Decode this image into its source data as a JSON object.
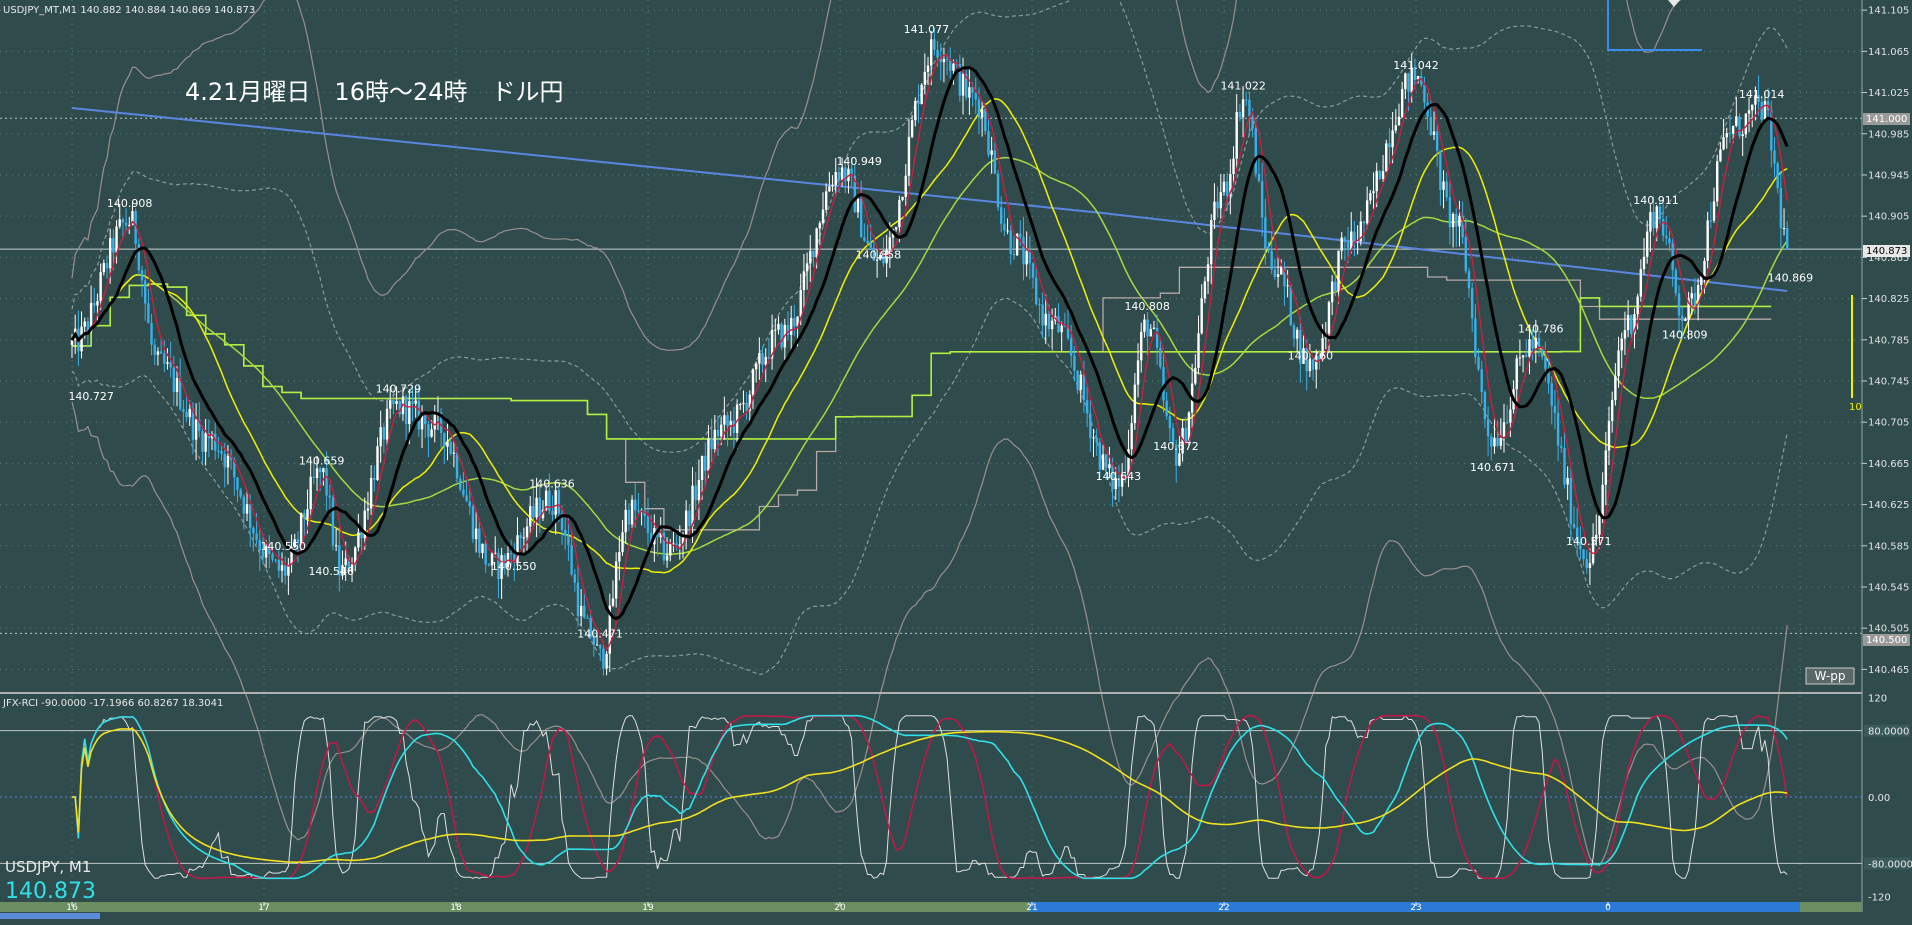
{
  "main_panel": {
    "header": "USDJPY_MT,M1  140.882 140.884 140.869 140.873",
    "title": "4.21月曜日　16時～24時　ドル円",
    "current_price_label": "140.873",
    "label_141_000": "141.000",
    "label_140_500": "140.500",
    "wpp_button": "W-pp",
    "side_value": "10",
    "price_ticks": [
      "141.105",
      "141.065",
      "141.025",
      "140.985",
      "140.945",
      "140.905",
      "140.865",
      "140.825",
      "140.785",
      "140.745",
      "140.705",
      "140.665",
      "140.625",
      "140.585",
      "140.545",
      "140.505",
      "140.465"
    ],
    "annotations": [
      {
        "text": "140.908",
        "price": 140.908,
        "time": 0.3
      },
      {
        "text": "140.727",
        "price": 140.74,
        "time": 0.1
      },
      {
        "text": "140.729",
        "price": 140.728,
        "time": 1.7
      },
      {
        "text": "140.659",
        "price": 140.658,
        "time": 1.3
      },
      {
        "text": "140.550",
        "price": 140.575,
        "time": 1.1
      },
      {
        "text": "140.546",
        "price": 140.57,
        "time": 1.35
      },
      {
        "text": "140.636",
        "price": 140.636,
        "time": 2.5
      },
      {
        "text": "140.550",
        "price": 140.575,
        "time": 2.3
      },
      {
        "text": "140.471",
        "price": 140.49,
        "time": 2.75
      },
      {
        "text": "140.949",
        "price": 140.949,
        "time": 4.1
      },
      {
        "text": "140.858",
        "price": 140.858,
        "time": 4.2
      },
      {
        "text": "141.077",
        "price": 141.077,
        "time": 4.45
      },
      {
        "text": "140.808",
        "price": 140.808,
        "time": 5.6
      },
      {
        "text": "140.643",
        "price": 140.643,
        "time": 5.45
      },
      {
        "text": "140.672",
        "price": 140.672,
        "time": 5.75
      },
      {
        "text": "141.022",
        "price": 141.022,
        "time": 6.1
      },
      {
        "text": "140.760",
        "price": 140.76,
        "time": 6.45
      },
      {
        "text": "141.042",
        "price": 141.042,
        "time": 7.0
      },
      {
        "text": "140.786",
        "price": 140.786,
        "time": 7.65
      },
      {
        "text": "140.671",
        "price": 140.671,
        "time": 7.4
      },
      {
        "text": "140.571",
        "price": 140.58,
        "time": 7.9
      },
      {
        "text": "140.911",
        "price": 140.911,
        "time": 8.25
      },
      {
        "text": "140.809",
        "price": 140.8,
        "time": 8.4
      },
      {
        "text": "141.014",
        "price": 141.014,
        "time": 8.8
      },
      {
        "text": "140.869",
        "price": 140.855,
        "time": 8.95
      }
    ]
  },
  "rci_panel": {
    "header": "JFX-RCI -90.0000 -17.1966 60.8267 18.3041",
    "levels": [
      {
        "text": "80.0000",
        "value": 80
      },
      {
        "text": "0.00",
        "value": 0
      },
      {
        "text": "-80.0000",
        "value": -80
      },
      {
        "text": "120",
        "value": 120
      },
      {
        "text": "-120",
        "value": -120
      }
    ],
    "symbol_label": "USDJPY, M1",
    "price_display": "140.873"
  },
  "time_axis": {
    "labels": [
      "16",
      "17",
      "18",
      "19",
      "20",
      "21",
      "22",
      "23",
      "0"
    ]
  },
  "chart_data": {
    "type": "candlestick",
    "symbol": "USDJPY",
    "timeframe": "M1",
    "x_unit": "hours since 16:00",
    "x_range": [
      0,
      9.0
    ],
    "y_range": [
      140.445,
      141.11
    ],
    "key_points": [
      {
        "t": 0.0,
        "p": 140.78
      },
      {
        "t": 0.3,
        "p": 140.9
      },
      {
        "t": 0.45,
        "p": 140.76
      },
      {
        "t": 0.7,
        "p": 140.69
      },
      {
        "t": 1.1,
        "p": 140.56
      },
      {
        "t": 1.3,
        "p": 140.655
      },
      {
        "t": 1.4,
        "p": 140.56
      },
      {
        "t": 1.7,
        "p": 140.72
      },
      {
        "t": 1.9,
        "p": 140.7
      },
      {
        "t": 2.2,
        "p": 140.565
      },
      {
        "t": 2.5,
        "p": 140.63
      },
      {
        "t": 2.7,
        "p": 140.5
      },
      {
        "t": 2.75,
        "p": 140.475
      },
      {
        "t": 2.9,
        "p": 140.62
      },
      {
        "t": 3.1,
        "p": 140.58
      },
      {
        "t": 3.4,
        "p": 140.7
      },
      {
        "t": 3.7,
        "p": 140.79
      },
      {
        "t": 4.0,
        "p": 140.95
      },
      {
        "t": 4.2,
        "p": 140.86
      },
      {
        "t": 4.5,
        "p": 141.07
      },
      {
        "t": 4.7,
        "p": 141.02
      },
      {
        "t": 4.9,
        "p": 140.88
      },
      {
        "t": 5.1,
        "p": 140.8
      },
      {
        "t": 5.45,
        "p": 140.645
      },
      {
        "t": 5.6,
        "p": 140.8
      },
      {
        "t": 5.75,
        "p": 140.675
      },
      {
        "t": 6.0,
        "p": 140.93
      },
      {
        "t": 6.1,
        "p": 141.02
      },
      {
        "t": 6.25,
        "p": 140.86
      },
      {
        "t": 6.45,
        "p": 140.76
      },
      {
        "t": 6.65,
        "p": 140.88
      },
      {
        "t": 7.0,
        "p": 141.04
      },
      {
        "t": 7.2,
        "p": 140.9
      },
      {
        "t": 7.4,
        "p": 140.69
      },
      {
        "t": 7.6,
        "p": 140.78
      },
      {
        "t": 7.9,
        "p": 140.575
      },
      {
        "t": 8.1,
        "p": 140.8
      },
      {
        "t": 8.25,
        "p": 140.91
      },
      {
        "t": 8.4,
        "p": 140.81
      },
      {
        "t": 8.65,
        "p": 140.99
      },
      {
        "t": 8.8,
        "p": 141.01
      },
      {
        "t": 8.95,
        "p": 140.87
      }
    ],
    "series": [
      {
        "name": "red-ma",
        "color": "#cc1f40"
      },
      {
        "name": "black-ma",
        "color": "#000000"
      },
      {
        "name": "yellow-ma",
        "color": "#f0f000"
      },
      {
        "name": "green-ma",
        "color": "#a8d840"
      },
      {
        "name": "blue-ma",
        "color": "#5b86e0"
      },
      {
        "name": "step-line",
        "color": "#b8a8a8"
      },
      {
        "name": "green-step-line",
        "color": "#b0f040"
      },
      {
        "name": "band",
        "color": "#9a8f8f"
      }
    ]
  },
  "colors": {
    "background": "#2f4b4b",
    "grid": "#5f8080",
    "candle_up": "#ffffff",
    "candle_down": "#3ab0e8",
    "rci_cyan": "#30e0e8",
    "rci_red": "#c01848",
    "rci_yellow": "#f0e020",
    "rci_white": "#e0e0e0"
  }
}
